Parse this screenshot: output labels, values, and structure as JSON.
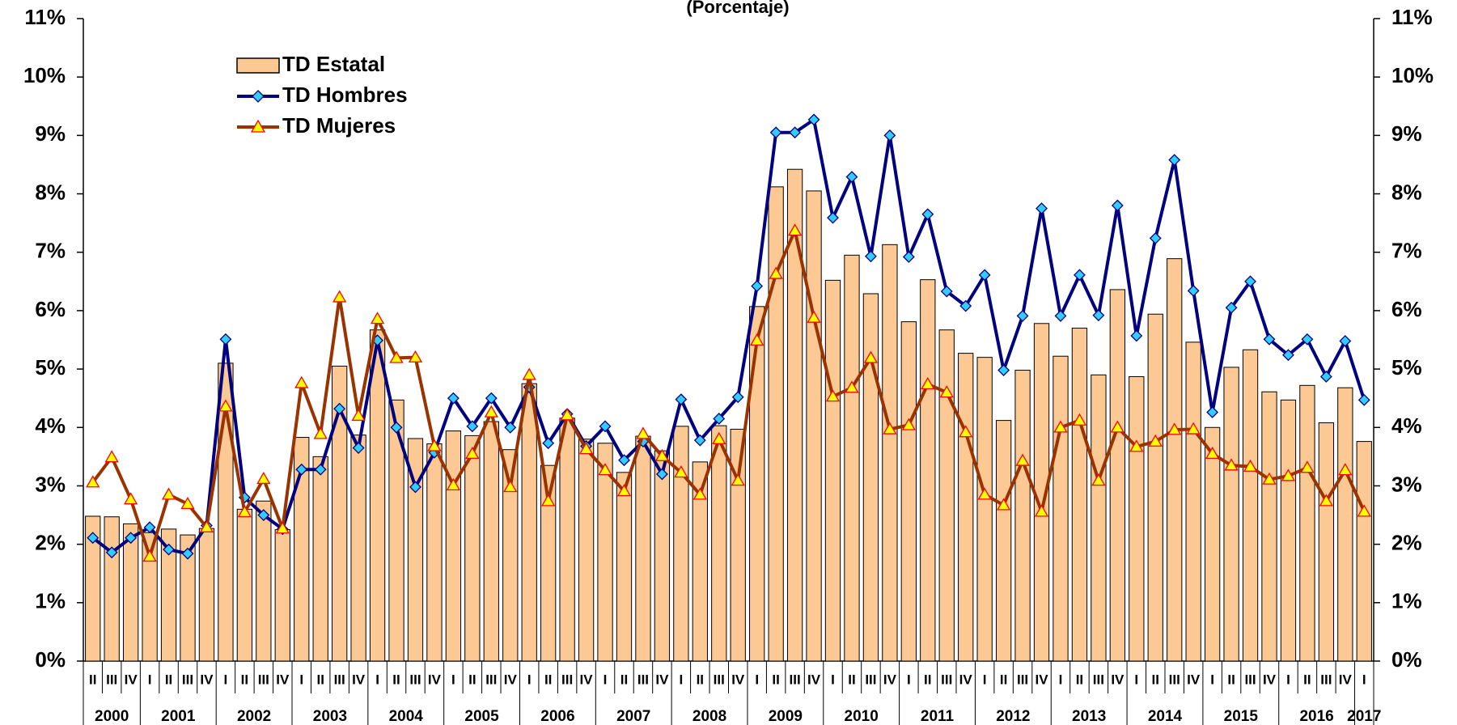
{
  "chart_data": {
    "type": "bar",
    "subtitle": "(Porcentaje)",
    "categories": [
      "II",
      "III",
      "IV",
      "I",
      "II",
      "III",
      "IV",
      "I",
      "II",
      "III",
      "IV",
      "I",
      "II",
      "III",
      "IV",
      "I",
      "II",
      "III",
      "IV",
      "I",
      "II",
      "III",
      "IV",
      "I",
      "II",
      "III",
      "IV",
      "I",
      "II",
      "III",
      "IV",
      "I",
      "II",
      "III",
      "IV",
      "I",
      "II",
      "III",
      "IV",
      "I",
      "II",
      "III",
      "IV",
      "I",
      "II",
      "III",
      "IV",
      "I",
      "II",
      "III",
      "IV",
      "I",
      "II",
      "III",
      "IV",
      "I",
      "II",
      "III",
      "IV",
      "I",
      "II",
      "III",
      "IV",
      "I",
      "II",
      "III",
      "IV",
      "I"
    ],
    "years": [
      "2000",
      "2001",
      "2002",
      "2003",
      "2004",
      "2005",
      "2006",
      "2007",
      "2008",
      "2009",
      "2010",
      "2011",
      "2012",
      "2013",
      "2014",
      "2015",
      "2016",
      "2017"
    ],
    "series": [
      {
        "name": "TD Estatal",
        "type": "bar",
        "color": "#fcc894",
        "values": [
          2.48,
          2.47,
          2.35,
          2.2,
          2.26,
          2.16,
          2.27,
          5.1,
          2.6,
          2.74,
          2.25,
          3.83,
          3.5,
          5.05,
          3.87,
          5.67,
          4.47,
          3.81,
          3.72,
          3.94,
          3.86,
          4.1,
          3.62,
          4.75,
          3.35,
          4.16,
          3.8,
          3.73,
          3.23,
          3.85,
          3.6,
          4.02,
          3.41,
          4.03,
          3.97,
          6.07,
          8.12,
          8.42,
          8.05,
          6.52,
          6.95,
          6.29,
          7.13,
          5.81,
          6.53,
          5.67,
          5.27,
          5.2,
          4.12,
          4.98,
          5.78,
          5.22,
          5.7,
          4.9,
          6.36,
          4.87,
          5.94,
          6.89,
          5.46,
          4.0,
          5.03,
          5.33,
          4.61,
          4.47,
          4.72,
          4.08,
          4.68,
          3.76
        ]
      },
      {
        "name": "TD Hombres",
        "type": "line",
        "color": "#000080",
        "marker": "diamond",
        "marker_color": "#33ccff",
        "values": [
          2.11,
          1.86,
          2.11,
          2.29,
          1.91,
          1.84,
          2.32,
          5.51,
          2.8,
          2.5,
          2.26,
          3.28,
          3.28,
          4.32,
          3.65,
          5.49,
          4.0,
          2.98,
          3.57,
          4.5,
          4.02,
          4.5,
          4.0,
          4.69,
          3.73,
          4.23,
          3.68,
          4.02,
          3.44,
          3.76,
          3.2,
          4.48,
          3.78,
          4.15,
          4.52,
          6.42,
          9.05,
          9.05,
          9.27,
          7.59,
          8.29,
          6.93,
          9.0,
          6.92,
          7.65,
          6.33,
          6.08,
          6.61,
          4.98,
          5.91,
          7.75,
          5.91,
          6.61,
          5.92,
          7.8,
          5.57,
          7.24,
          8.58,
          6.34,
          4.26,
          6.05,
          6.5,
          5.51,
          5.24,
          5.51,
          4.87,
          5.48,
          4.47
        ]
      },
      {
        "name": "TD Mujeres",
        "type": "line",
        "color": "#993300",
        "marker": "triangle",
        "marker_color": "#ffff00",
        "marker_edge": "#ff0000",
        "values": [
          3.06,
          3.49,
          2.77,
          1.79,
          2.85,
          2.69,
          2.29,
          4.36,
          2.55,
          3.12,
          2.27,
          4.76,
          3.89,
          6.23,
          4.2,
          5.86,
          5.19,
          5.2,
          3.68,
          3.01,
          3.55,
          4.26,
          2.98,
          4.9,
          2.74,
          4.21,
          3.63,
          3.27,
          2.91,
          3.89,
          3.51,
          3.23,
          2.85,
          3.8,
          3.09,
          5.49,
          6.63,
          7.37,
          5.88,
          4.53,
          4.68,
          5.19,
          3.97,
          4.04,
          4.74,
          4.6,
          3.92,
          2.85,
          2.67,
          3.43,
          2.56,
          4.0,
          4.12,
          3.09,
          4.0,
          3.67,
          3.76,
          3.96,
          3.97,
          3.55,
          3.35,
          3.33,
          3.11,
          3.17,
          3.31,
          2.74,
          3.27,
          2.56
        ]
      }
    ],
    "ylim": [
      0,
      11
    ],
    "yticks": [
      {
        "value": 0,
        "label": "0%"
      },
      {
        "value": 1,
        "label": "1%"
      },
      {
        "value": 2,
        "label": "2%"
      },
      {
        "value": 3,
        "label": "3%"
      },
      {
        "value": 4,
        "label": "4%"
      },
      {
        "value": 5,
        "label": "5%"
      },
      {
        "value": 6,
        "label": "6%"
      },
      {
        "value": 7,
        "label": "7%"
      },
      {
        "value": 8,
        "label": "8%"
      },
      {
        "value": 9,
        "label": "9%"
      },
      {
        "value": 10,
        "label": "10%"
      },
      {
        "value": 11,
        "label": "11%"
      }
    ],
    "y2lim": [
      0,
      11
    ],
    "y2ticks": [
      {
        "value": 0,
        "label": "0%"
      },
      {
        "value": 1,
        "label": "1%"
      },
      {
        "value": 2,
        "label": "2%"
      },
      {
        "value": 3,
        "label": "3%"
      },
      {
        "value": 4,
        "label": "4%"
      },
      {
        "value": 5,
        "label": "5%"
      },
      {
        "value": 6,
        "label": "6%"
      },
      {
        "value": 7,
        "label": "7%"
      },
      {
        "value": 8,
        "label": "8%"
      },
      {
        "value": 9,
        "label": "9%"
      },
      {
        "value": 10,
        "label": "10%"
      },
      {
        "value": 11,
        "label": "11%"
      }
    ],
    "grid": false,
    "legend": "upper left"
  }
}
